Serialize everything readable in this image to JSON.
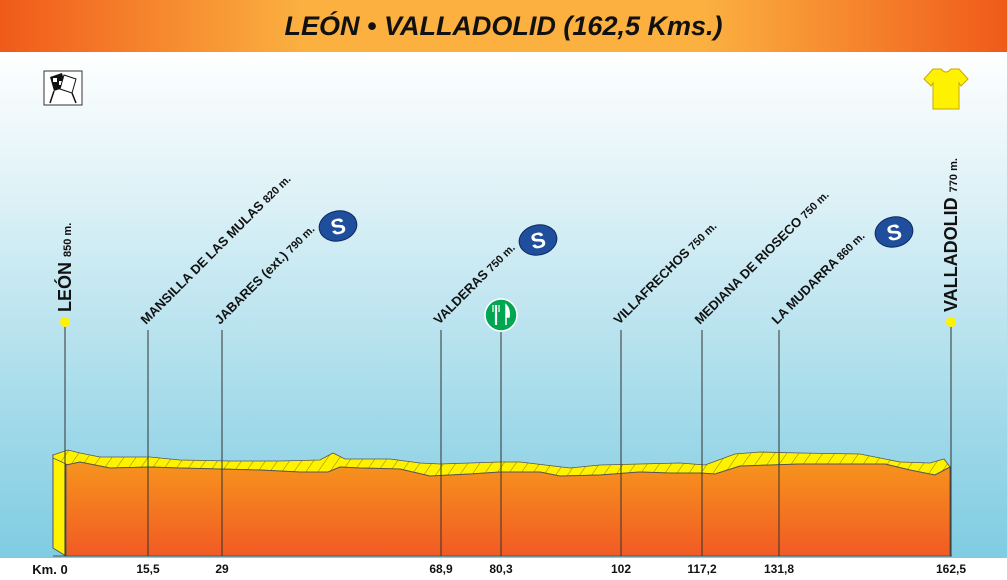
{
  "title": "LEÓN • VALLADOLID (162,5 Kms.)",
  "start": {
    "name": "LEÓN",
    "altitude": "850 m.",
    "km_label": "Km. 0"
  },
  "finish": {
    "name": "VALLADOLID",
    "altitude": "770 m.",
    "km_label": "162,5"
  },
  "waypoints": [
    {
      "name": "MANSILLA DE LAS MULAS",
      "altitude": "820 m.",
      "km_label": "15,5"
    },
    {
      "name": "JABARES (ext.)",
      "altitude": "790 m.",
      "km_label": "29"
    },
    {
      "name": "VALDERAS",
      "altitude": "750 m.",
      "km_label": "68,9"
    },
    {
      "name": "",
      "altitude": "",
      "km_label": "80,3"
    },
    {
      "name": "VILLAFRECHOS",
      "altitude": "750 m.",
      "km_label": "102"
    },
    {
      "name": "MEDIANA DE RIOSECO",
      "altitude": "750 m.",
      "km_label": "117,2"
    },
    {
      "name": "LA MUDARRA",
      "altitude": "860 m.",
      "km_label": "131,8"
    }
  ],
  "sprint_badge_label": "S",
  "colors": {
    "profile_top": "#fff200",
    "profile_fill_top": "#f7941d",
    "profile_fill_bottom": "#f15a24",
    "sprint_badge": "#1f4e9c",
    "feed_badge": "#00a651",
    "marker_dot": "#fff200"
  },
  "icons": {
    "start": "checkered-flags-icon",
    "finish": "yellow-jersey-icon",
    "sprint": "sprint-badge-icon",
    "feed": "feed-zone-icon"
  }
}
